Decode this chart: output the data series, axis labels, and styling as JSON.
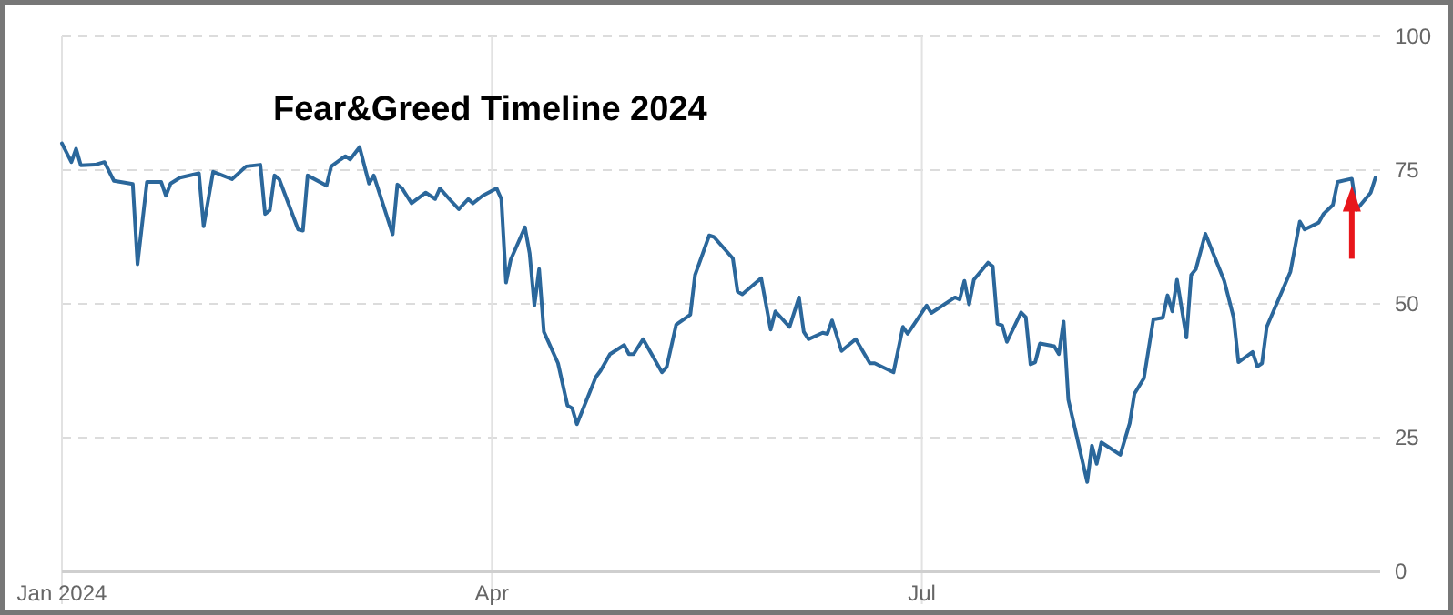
{
  "chart_data": {
    "type": "line",
    "title": "Fear&Greed Timeline 2024",
    "x": [
      "2024-01-01",
      "2024-01-03",
      "2024-01-04",
      "2024-01-05",
      "2024-01-08",
      "2024-01-10",
      "2024-01-12",
      "2024-01-16",
      "2024-01-17",
      "2024-01-19",
      "2024-01-22",
      "2024-01-23",
      "2024-01-24",
      "2024-01-26",
      "2024-01-30",
      "2024-01-31",
      "2024-02-02",
      "2024-02-04",
      "2024-02-06",
      "2024-02-09",
      "2024-02-12",
      "2024-02-13",
      "2024-02-14",
      "2024-02-15",
      "2024-02-16",
      "2024-02-20",
      "2024-02-21",
      "2024-02-22",
      "2024-02-26",
      "2024-02-27",
      "2024-02-29",
      "2024-03-01",
      "2024-03-02",
      "2024-03-04",
      "2024-03-06",
      "2024-03-07",
      "2024-03-09",
      "2024-03-11",
      "2024-03-12",
      "2024-03-13",
      "2024-03-15",
      "2024-03-18",
      "2024-03-20",
      "2024-03-21",
      "2024-03-23",
      "2024-03-25",
      "2024-03-27",
      "2024-03-28",
      "2024-03-30",
      "2024-04-02",
      "2024-04-03",
      "2024-04-04",
      "2024-04-05",
      "2024-04-08",
      "2024-04-09",
      "2024-04-10",
      "2024-04-11",
      "2024-04-12",
      "2024-04-15",
      "2024-04-17",
      "2024-04-18",
      "2024-04-19",
      "2024-04-23",
      "2024-04-24",
      "2024-04-26",
      "2024-04-29",
      "2024-04-30",
      "2024-05-01",
      "2024-05-03",
      "2024-05-07",
      "2024-05-08",
      "2024-05-10",
      "2024-05-13",
      "2024-05-14",
      "2024-05-17",
      "2024-05-18",
      "2024-05-22",
      "2024-05-23",
      "2024-05-24",
      "2024-05-28",
      "2024-05-30",
      "2024-05-31",
      "2024-06-03",
      "2024-06-05",
      "2024-06-06",
      "2024-06-07",
      "2024-06-10",
      "2024-06-11",
      "2024-06-12",
      "2024-06-14",
      "2024-06-17",
      "2024-06-20",
      "2024-06-21",
      "2024-06-25",
      "2024-06-27",
      "2024-06-28",
      "2024-07-02",
      "2024-07-03",
      "2024-07-08",
      "2024-07-09",
      "2024-07-10",
      "2024-07-11",
      "2024-07-12",
      "2024-07-15",
      "2024-07-16",
      "2024-07-17",
      "2024-07-18",
      "2024-07-19",
      "2024-07-22",
      "2024-07-23",
      "2024-07-24",
      "2024-07-25",
      "2024-07-26",
      "2024-07-29",
      "2024-07-30",
      "2024-07-31",
      "2024-08-01",
      "2024-08-05",
      "2024-08-06",
      "2024-08-07",
      "2024-08-08",
      "2024-08-12",
      "2024-08-14",
      "2024-08-15",
      "2024-08-17",
      "2024-08-19",
      "2024-08-21",
      "2024-08-22",
      "2024-08-23",
      "2024-08-24",
      "2024-08-26",
      "2024-08-27",
      "2024-08-28",
      "2024-08-30",
      "2024-09-03",
      "2024-09-05",
      "2024-09-06",
      "2024-09-09",
      "2024-09-10",
      "2024-09-11",
      "2024-09-12",
      "2024-09-17",
      "2024-09-19",
      "2024-09-20",
      "2024-09-23",
      "2024-09-24",
      "2024-09-26",
      "2024-09-27",
      "2024-09-30",
      "2024-10-01",
      "2024-10-04",
      "2024-10-05"
    ],
    "series": [
      {
        "color": "#2b679b",
        "values": [
          80,
          76.5,
          79,
          75.9,
          76,
          76.5,
          73,
          72.4,
          57.4,
          72.8,
          72.8,
          70.2,
          72.5,
          73.6,
          74.4,
          64.5,
          74.7,
          74,
          73.3,
          75.7,
          76,
          66.8,
          67.5,
          74,
          73.3,
          63.9,
          63.7,
          74,
          72.1,
          75.7,
          77,
          77.6,
          77,
          79.3,
          72.5,
          74,
          68.5,
          63,
          72.3,
          71.6,
          68.8,
          70.8,
          69.6,
          71.6,
          69.6,
          67.7,
          69.6,
          68.8,
          70.2,
          71.6,
          69.6,
          54,
          58.3,
          64.3,
          59.4,
          49.7,
          56.5,
          44.8,
          38.9,
          31,
          30.5,
          27.5,
          36.3,
          37.5,
          40.6,
          42.3,
          40.6,
          40.6,
          43.4,
          37.2,
          38.2,
          46.1,
          48,
          55.4,
          62.8,
          62.5,
          58.5,
          52.3,
          51.8,
          54.8,
          45.2,
          48.6,
          45.7,
          51.2,
          44.8,
          43.4,
          44.6,
          44.4,
          46.9,
          41.2,
          43.4,
          38.9,
          38.9,
          37.2,
          45.7,
          44.4,
          49.7,
          48.3,
          51.2,
          50.8,
          54.3,
          49.9,
          54.5,
          57.7,
          57,
          46.3,
          46,
          42.9,
          48.4,
          47.5,
          38.7,
          39.1,
          42.6,
          42.1,
          40.6,
          46.7,
          32.1,
          16.7,
          23.5,
          20.1,
          24.1,
          21.8,
          27.7,
          33.2,
          36.1,
          47.1,
          47.4,
          51.6,
          48.6,
          54.5,
          43.7,
          55.4,
          56.5,
          63.1,
          54.3,
          47.4,
          39.1,
          41,
          38.3,
          38.9,
          45.7,
          56,
          65.4,
          63.9,
          65.2,
          66.8,
          68.5,
          72.8,
          73.4,
          67.6,
          70.8,
          73.6
        ]
      }
    ],
    "xlim": [
      "2024-01-01",
      "2024-10-06"
    ],
    "xticks": [
      {
        "value": "2024-01-01",
        "label": "Jan 2024"
      },
      {
        "value": "2024-04-01",
        "label": "Apr"
      },
      {
        "value": "2024-07-01",
        "label": "Jul"
      }
    ],
    "ylim": [
      0,
      100
    ],
    "yticks": [
      0,
      25,
      50,
      75,
      100
    ],
    "grid": true,
    "marker": "none",
    "line_style": "solid"
  }
}
